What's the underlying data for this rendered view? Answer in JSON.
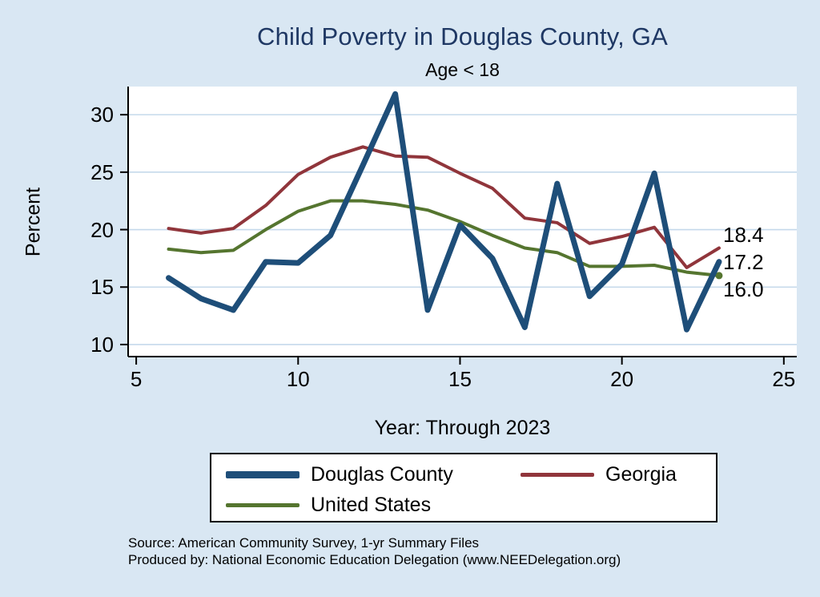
{
  "chart_data": {
    "type": "line",
    "title": "Child Poverty in Douglas County, GA",
    "subtitle": "Age < 18",
    "xlabel": "Year: Through 2023",
    "ylabel": "Percent",
    "x": [
      6,
      7,
      8,
      9,
      10,
      11,
      12,
      13,
      14,
      15,
      16,
      17,
      18,
      19,
      20,
      21,
      22,
      23
    ],
    "series": [
      {
        "name": "Douglas County",
        "color": "#1e4e79",
        "line_width": 7,
        "end_label": "17.2",
        "values": [
          15.8,
          14.0,
          13.0,
          17.2,
          17.1,
          19.5,
          25.6,
          31.8,
          13.0,
          20.4,
          17.5,
          11.5,
          24.0,
          14.2,
          17.0,
          24.9,
          11.3,
          17.2
        ]
      },
      {
        "name": "Georgia",
        "color": "#90353b",
        "line_width": 4,
        "end_label": "18.4",
        "values": [
          20.1,
          19.7,
          20.1,
          22.1,
          24.8,
          26.3,
          27.2,
          26.4,
          26.3,
          24.9,
          23.6,
          21.0,
          20.6,
          18.8,
          19.4,
          20.2,
          16.7,
          18.4
        ]
      },
      {
        "name": "United States",
        "color": "#55752f",
        "line_width": 4,
        "end_label": "16.0",
        "end_marker": true,
        "values": [
          18.3,
          18.0,
          18.2,
          20.0,
          21.6,
          22.5,
          22.5,
          22.2,
          21.7,
          20.7,
          19.5,
          18.4,
          18.0,
          16.8,
          16.8,
          16.9,
          16.3,
          16.0
        ]
      }
    ],
    "xlim": [
      4.75,
      25.4
    ],
    "ylim": [
      8.95,
      32.45
    ],
    "xticks": [
      5,
      10,
      15,
      20,
      25
    ],
    "yticks": [
      10,
      15,
      20,
      25,
      30
    ],
    "grid": "horizontal",
    "legend_position": "bottom"
  },
  "footer": {
    "source": "Source: American Community Survey, 1-yr Summary Files",
    "produced": "Produced by: National Economic Education Delegation (www.NEEDelegation.org)"
  },
  "colors": {
    "background": "#d9e7f3",
    "plot_background": "#ffffff",
    "grid": "#c5d9eb",
    "axis": "#000000",
    "title": "#1f3864",
    "text": "#000000"
  }
}
